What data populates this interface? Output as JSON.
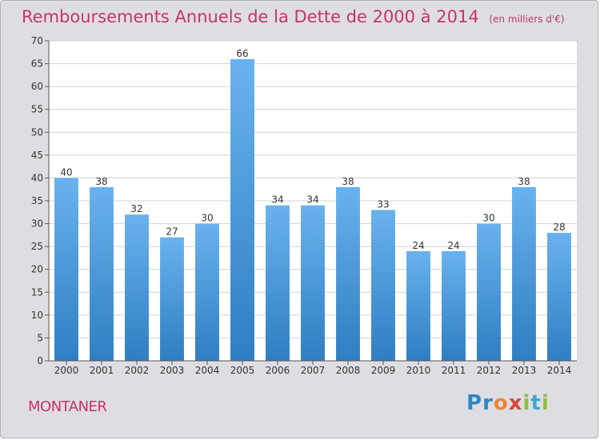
{
  "header": {
    "title": "Remboursements Annuels de la Dette de 2000 à 2014",
    "unit": "(en milliers d'€)"
  },
  "footer": {
    "place": "MONTANER",
    "brand": "Proxiti"
  },
  "colors": {
    "title": "#c8336a",
    "bar_top": "#6ab2ee",
    "bar_bottom": "#2e7ec2",
    "plot_bg": "#ffffff",
    "frame_bg": "#dedee2",
    "grid": "#d0d0d0"
  },
  "chart_data": {
    "type": "bar",
    "title": "Remboursements Annuels de la Dette de 2000 à 2014",
    "categories": [
      "2000",
      "2001",
      "2002",
      "2003",
      "2004",
      "2005",
      "2006",
      "2007",
      "2008",
      "2009",
      "2010",
      "2011",
      "2012",
      "2013",
      "2014"
    ],
    "values": [
      40,
      38,
      32,
      27,
      30,
      66,
      34,
      34,
      38,
      33,
      24,
      24,
      30,
      38,
      28
    ],
    "ylim": [
      0,
      70
    ],
    "yticks": [
      0,
      5,
      10,
      15,
      20,
      25,
      30,
      35,
      40,
      45,
      50,
      55,
      60,
      65,
      70
    ],
    "grid": true,
    "xlabel": "",
    "ylabel": ""
  }
}
